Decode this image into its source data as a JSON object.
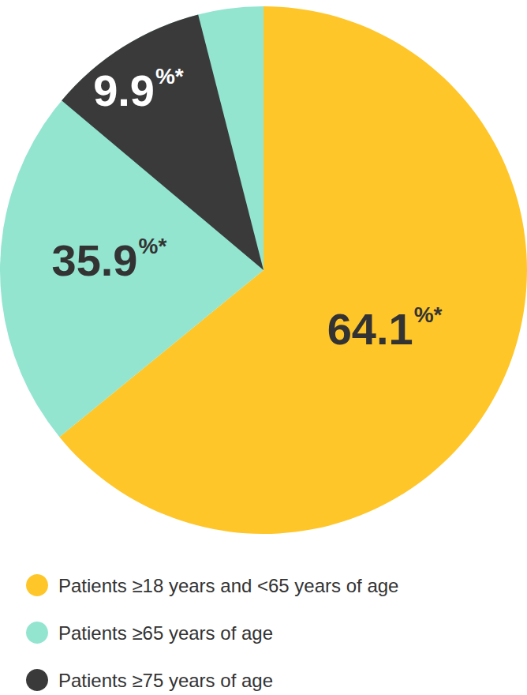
{
  "chart_data": {
    "type": "pie",
    "categories": [
      "Patients ≥18 years and <65 years of age",
      "Patients ≥65 years of age",
      "Patients ≥75 years of age"
    ],
    "values": [
      64.1,
      35.9,
      9.9
    ],
    "value_labels": [
      "64.1%*",
      "35.9%*",
      "9.9%*"
    ],
    "colors": [
      "#FFC629",
      "#93E5D0",
      "#3A3A3A"
    ],
    "data_labels": true,
    "legend": "bottom left"
  }
}
